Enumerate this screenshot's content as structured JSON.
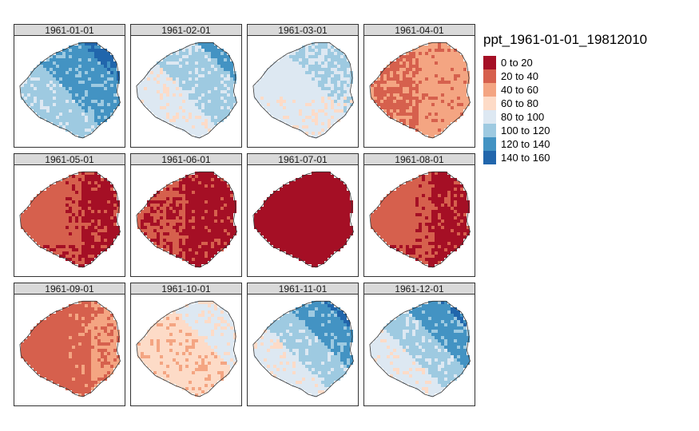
{
  "legend": {
    "title": "ppt_1961-01-01_19812010",
    "classes": [
      {
        "label": "0 to 20",
        "color": "#a50f25"
      },
      {
        "label": "20 to 40",
        "color": "#d6604d"
      },
      {
        "label": "40 to 60",
        "color": "#f4a582"
      },
      {
        "label": "60 to 80",
        "color": "#fddbc7"
      },
      {
        "label": "80 to 100",
        "color": "#dde8f2"
      },
      {
        "label": "100 to 120",
        "color": "#9ecae1"
      },
      {
        "label": "120 to 140",
        "color": "#4393c3"
      },
      {
        "label": "140 to 160",
        "color": "#2166ac"
      }
    ]
  },
  "panels": [
    {
      "label": "1961-01-01",
      "base": 5,
      "ne_class": 7,
      "spatial": "east-high"
    },
    {
      "label": "1961-02-01",
      "base": 4,
      "ne_class": 6,
      "spatial": "east-high"
    },
    {
      "label": "1961-03-01",
      "base": 4,
      "ne_class": 5,
      "spatial": "mixed-light"
    },
    {
      "label": "1961-04-01",
      "base": 2,
      "ne_class": 1,
      "spatial": "west-light"
    },
    {
      "label": "1961-05-01",
      "base": 1,
      "ne_class": 0,
      "spatial": "east-dark"
    },
    {
      "label": "1961-06-01",
      "base": 0,
      "ne_class": 1,
      "spatial": "west-light"
    },
    {
      "label": "1961-07-01",
      "base": 0,
      "ne_class": 0,
      "spatial": "uniform"
    },
    {
      "label": "1961-08-01",
      "base": 1,
      "ne_class": 0,
      "spatial": "east-dark"
    },
    {
      "label": "1961-09-01",
      "base": 1,
      "ne_class": 2,
      "spatial": "east-light"
    },
    {
      "label": "1961-10-01",
      "base": 3,
      "ne_class": 4,
      "spatial": "east-high"
    },
    {
      "label": "1961-11-01",
      "base": 4,
      "ne_class": 7,
      "spatial": "east-high"
    },
    {
      "label": "1961-12-01",
      "base": 4,
      "ne_class": 7,
      "spatial": "east-high"
    }
  ]
}
